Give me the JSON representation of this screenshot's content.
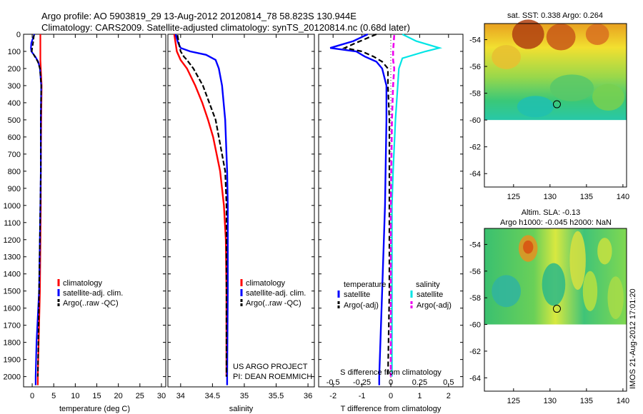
{
  "header": {
    "line1": "Argo profile: AO 5903819_29 13-Aug-2012 20120814_78 58.823S 130.944E",
    "line2": "Climatology: CARS2009. Satellite-adjusted climatology: synTS_20120814.nc (0.68d later)"
  },
  "stamp": "IMOS 21-Aug-2012 17:01:20",
  "project_note": [
    "US ARGO PROJECT",
    "PI: DEAN ROEMMICH"
  ],
  "colors": {
    "climatology": "#ff0000",
    "satellite": "#0000ff",
    "argo": "#000000",
    "sat_salinity": "#00e5e5",
    "argo_salinity": "#ee00ee"
  },
  "chart_data": [
    {
      "type": "line",
      "id": "temperature",
      "xlabel": "temperature (deg C)",
      "ylabel": "",
      "xlim": [
        -2,
        31
      ],
      "ylim": [
        2060,
        0
      ],
      "xticks": [
        0,
        5,
        10,
        15,
        20,
        25,
        30
      ],
      "yticks": [
        0,
        100,
        200,
        300,
        400,
        500,
        600,
        700,
        800,
        900,
        1000,
        1100,
        1200,
        1300,
        1400,
        1500,
        1600,
        1700,
        1800,
        1900,
        2000
      ],
      "legend": [
        "climatology",
        "satellite-adj. clim.",
        "Argo(..raw -QC)"
      ],
      "series": [
        {
          "name": "climatology",
          "depth": [
            0,
            100,
            150,
            200,
            300,
            500,
            800,
            1000,
            1500,
            2000,
            2050
          ],
          "values": [
            1.9,
            1.9,
            1.9,
            2.0,
            2.2,
            2.1,
            2.0,
            2.0,
            1.8,
            1.3,
            1.3
          ]
        },
        {
          "name": "satellite-adj. clim.",
          "depth": [
            0,
            50,
            80,
            100,
            130,
            160,
            200,
            300,
            500,
            800,
            1000,
            1500,
            1800,
            2000,
            2050
          ],
          "values": [
            0.5,
            -0.2,
            -0.3,
            -0.2,
            0.7,
            1.4,
            1.8,
            2.1,
            2.0,
            2.0,
            1.9,
            1.6,
            1.0,
            0.8,
            0.8
          ]
        },
        {
          "name": "Argo(..raw -QC)",
          "depth": [
            5,
            50,
            80,
            100,
            130,
            160,
            200,
            300,
            500,
            800,
            1000,
            1500,
            2000
          ],
          "values": [
            0.4,
            0.2,
            0.0,
            -0.1,
            0.6,
            1.3,
            1.8,
            2.1,
            2.0,
            2.0,
            1.9,
            1.6,
            1.3
          ]
        }
      ]
    },
    {
      "type": "line",
      "id": "salinity",
      "xlabel": "salinity",
      "ylabel": "",
      "xlim": [
        33.8,
        36.1
      ],
      "ylim": [
        2060,
        0
      ],
      "xticks": [
        34,
        34.5,
        35,
        35.5,
        36
      ],
      "legend": [
        "climatology",
        "satellite-adj. clim.",
        "Argo(..raw -QC)"
      ],
      "series": [
        {
          "name": "climatology",
          "depth": [
            0,
            50,
            100,
            150,
            200,
            300,
            400,
            500,
            600,
            800,
            1000,
            1200,
            1500,
            2000
          ],
          "values": [
            33.9,
            33.92,
            33.94,
            34.0,
            34.1,
            34.23,
            34.34,
            34.43,
            34.51,
            34.62,
            34.68,
            34.71,
            34.72,
            34.72
          ]
        },
        {
          "name": "satellite-adj. clim.",
          "depth": [
            0,
            50,
            80,
            100,
            120,
            150,
            200,
            300,
            500,
            800,
            1000,
            1200,
            1500,
            2000,
            2050
          ],
          "values": [
            33.92,
            33.96,
            34.0,
            34.15,
            34.4,
            34.55,
            34.6,
            34.65,
            34.7,
            34.73,
            34.74,
            34.74,
            34.74,
            34.73,
            34.73
          ]
        },
        {
          "name": "Argo(..raw -QC)",
          "depth": [
            5,
            50,
            100,
            130,
            150,
            200,
            300,
            500,
            800,
            1000,
            1500,
            2000
          ],
          "values": [
            33.95,
            33.97,
            34.0,
            34.05,
            34.1,
            34.2,
            34.35,
            34.55,
            34.7,
            34.72,
            34.72,
            34.72
          ]
        }
      ]
    },
    {
      "type": "line",
      "id": "difference",
      "xlabel": "T difference from climatology",
      "xlabel2": "S difference from climatology",
      "xlim": [
        -2.5,
        2.5
      ],
      "ylim": [
        2060,
        0
      ],
      "xticks": [
        -2,
        -1,
        0,
        1,
        2
      ],
      "xticks2": [
        -0.5,
        -0.25,
        0,
        0.25,
        0.5
      ],
      "legend_titles": [
        "temperature",
        "salinity"
      ],
      "legend": [
        "satellite",
        "Argo(-adj)",
        "satellite",
        "Argo(-adj)"
      ],
      "series": [
        {
          "name": "T satellite",
          "depth": [
            0,
            40,
            80,
            100,
            130,
            160,
            200,
            300,
            500,
            1000,
            1500,
            2000,
            2050
          ],
          "values": [
            -0.8,
            -1.3,
            -2.1,
            -1.2,
            -0.9,
            -0.5,
            -0.3,
            -0.15,
            -0.15,
            -0.2,
            -0.3,
            -0.4,
            -0.4
          ]
        },
        {
          "name": "T Argo(-adj)",
          "depth": [
            0,
            50,
            80,
            100,
            130,
            160,
            200,
            300,
            500,
            1000,
            1500,
            2000
          ],
          "values": [
            -0.5,
            -1.2,
            -1.6,
            -1.0,
            -0.6,
            -0.3,
            -0.1,
            -0.1,
            -0.05,
            -0.05,
            -0.05,
            -0.1
          ]
        },
        {
          "name": "S satellite",
          "depth": [
            0,
            40,
            80,
            100,
            140,
            200,
            300,
            500,
            800,
            1000,
            1500,
            2000
          ],
          "values": [
            0.1,
            0.22,
            0.42,
            0.3,
            0.1,
            0.07,
            0.06,
            0.04,
            0.02,
            0.01,
            0.01,
            0.01
          ]
        },
        {
          "name": "S Argo(-adj)",
          "depth": [
            5,
            100,
            150,
            200,
            300,
            500,
            1000,
            1500,
            2000
          ],
          "values": [
            0.03,
            0.02,
            0.02,
            0.03,
            0.02,
            0.01,
            0.0,
            0.0,
            0.0
          ]
        }
      ]
    },
    {
      "type": "heatmap",
      "id": "sst-map",
      "title": "sat. SST: 0.338 Argo: 0.264",
      "xticks": [
        125,
        130,
        135,
        140
      ],
      "yticks": [
        -54,
        -56,
        -58,
        -60,
        -62,
        -64
      ],
      "xlim": [
        121,
        140.5
      ],
      "ylim": [
        -65,
        -52.8
      ],
      "data_bottom": -60,
      "argo_position": [
        130.944,
        -58.823
      ]
    },
    {
      "type": "heatmap",
      "id": "sla-map",
      "title_lines": [
        "Altim. SLA: -0.13",
        "Argo h1000: -0.045 h2000: NaN"
      ],
      "xticks": [
        125,
        130,
        135,
        140
      ],
      "yticks": [
        -54,
        -56,
        -58,
        -60,
        -62,
        -64
      ],
      "xlim": [
        121,
        140.5
      ],
      "ylim": [
        -65,
        -52.8
      ],
      "data_bottom": -60,
      "argo_position": [
        130.944,
        -58.823
      ]
    }
  ]
}
